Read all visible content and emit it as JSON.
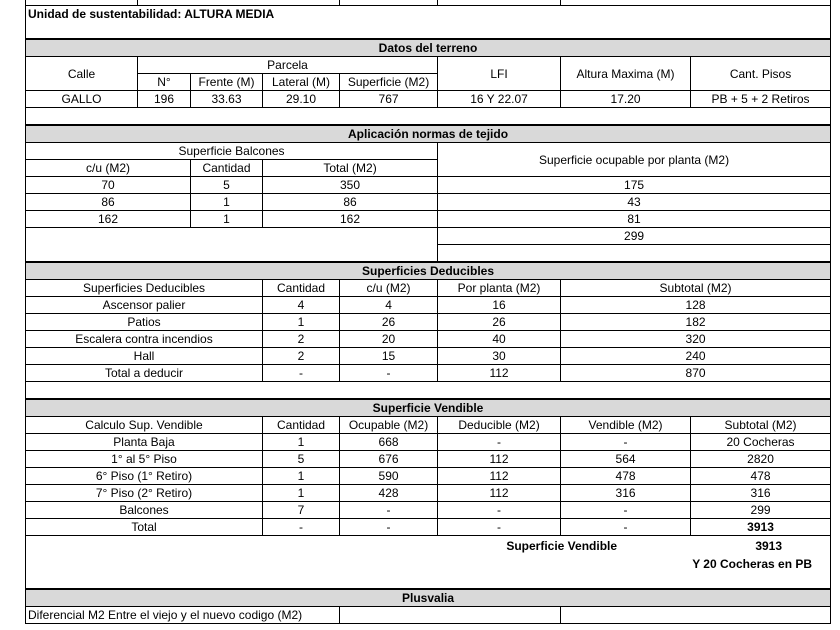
{
  "unidad": {
    "label": "Unidad de sustentabilidad:  ALTURA MEDIA"
  },
  "datos_terreno": {
    "title": "Datos del terreno",
    "headers": {
      "calle": "Calle",
      "parcela": "Parcela",
      "lfi": "LFI",
      "altura": "Altura Maxima (M)",
      "pisos": "Cant. Pisos"
    },
    "subheaders": [
      "N°",
      "Frente (M)",
      "Lateral (M)",
      "Superficie (M2)"
    ],
    "row": [
      "GALLO",
      "196",
      "33.63",
      "29.10",
      "767",
      "16 Y 22.07",
      "17.20",
      "PB + 5 + 2 Retiros"
    ]
  },
  "aplicacion": {
    "title": "Aplicación normas de tejido",
    "balcones_header": "Superficie Balcones",
    "ocupable_header": "Superficie ocupable por planta (M2)",
    "columns": [
      "c/u (M2)",
      "Cantidad",
      "Total (M2)"
    ],
    "rows": [
      [
        "70",
        "5",
        "350",
        "175"
      ],
      [
        "86",
        "1",
        "86",
        "43"
      ],
      [
        "162",
        "1",
        "162",
        "81"
      ]
    ],
    "ocupable_total": "299"
  },
  "deducibles": {
    "title": "Superficies Deducibles",
    "columns": [
      "Superficies Deducibles",
      "Cantidad",
      "c/u (M2)",
      "Por planta (M2)",
      "Subtotal (M2)"
    ],
    "rows": [
      [
        "Ascensor palier",
        "4",
        "4",
        "16",
        "128"
      ],
      [
        "Patios",
        "1",
        "26",
        "26",
        "182"
      ],
      [
        "Escalera contra incendios",
        "2",
        "20",
        "40",
        "320"
      ],
      [
        "Hall",
        "2",
        "15",
        "30",
        "240"
      ],
      [
        "Total a deducir",
        "-",
        "-",
        "112",
        "870"
      ]
    ]
  },
  "vendible": {
    "title": "Superficie Vendible",
    "columns": [
      "Calculo Sup. Vendible",
      "Cantidad",
      "Ocupable (M2)",
      "Deducible (M2)",
      "Vendible (M2)",
      "Subtotal (M2)"
    ],
    "rows": [
      [
        "Planta Baja",
        "1",
        "668",
        "-",
        "-",
        "20 Cocheras"
      ],
      [
        "1° al 5° Piso",
        "5",
        "676",
        "112",
        "564",
        "2820"
      ],
      [
        "6° Piso (1° Retiro)",
        "1",
        "590",
        "112",
        "478",
        "478"
      ],
      [
        "7° Piso (2° Retiro)",
        "1",
        "428",
        "112",
        "316",
        "316"
      ],
      [
        "Balcones",
        "7",
        "-",
        "-",
        "-",
        "299"
      ],
      [
        "Total",
        "-",
        "-",
        "-",
        "-",
        "3913"
      ]
    ],
    "summary_label": "Superficie Vendible",
    "summary_value": "3913",
    "summary_note": "Y 20 Cocheras en PB"
  },
  "plusvalia": {
    "title": "Plusvalia",
    "row_label": "Diferencial M2 Entre el viejo y el nuevo codigo (M2)"
  }
}
